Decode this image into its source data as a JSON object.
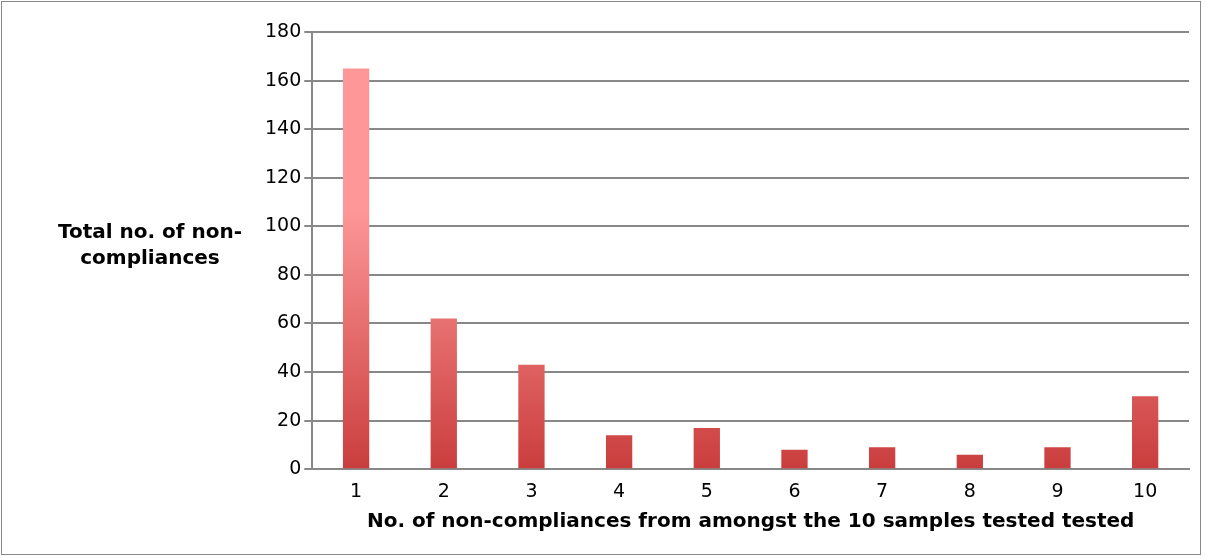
{
  "chart_data": {
    "type": "bar",
    "xlabel": "No. of non-compliances from amongst the 10 samples tested tested",
    "ylabel": "Total no. of non-compliances",
    "categories": [
      "1",
      "2",
      "3",
      "4",
      "5",
      "6",
      "7",
      "8",
      "9",
      "10"
    ],
    "values": [
      165,
      62,
      43,
      14,
      17,
      8,
      9,
      6,
      9,
      30
    ],
    "color": "#e06666",
    "ylim": [
      0,
      180
    ],
    "yticks": [
      0,
      20,
      40,
      60,
      80,
      100,
      120,
      140,
      160,
      180
    ],
    "grid": "y"
  }
}
